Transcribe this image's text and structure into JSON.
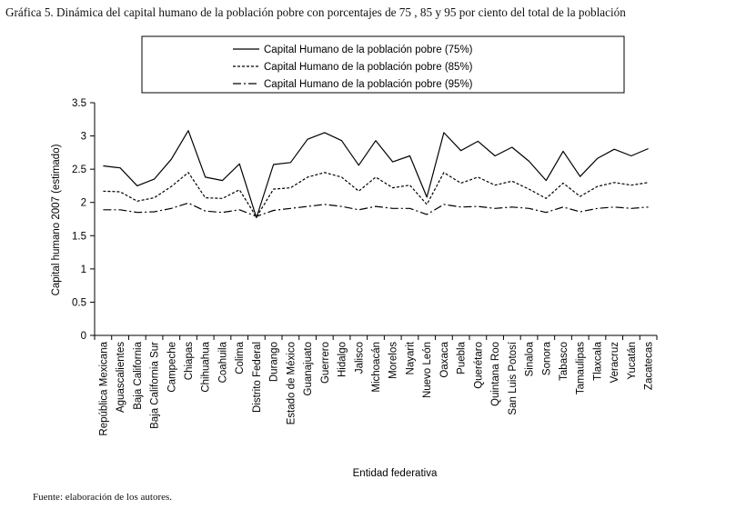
{
  "title": "Gráfica 5. Dinámica del capital humano de la población pobre con porcentajes de 75 , 85 y 95 por ciento del total de la población",
  "source": "Fuente: elaboración de los autores.",
  "chart_data": {
    "type": "line",
    "xlabel": "Entidad federativa",
    "ylabel": "Capital humano 2007 (estimado)",
    "ylim": [
      0,
      3.5
    ],
    "yticks": [
      "0",
      "0.5",
      "1",
      "1.5",
      "2",
      "2.5",
      "3",
      "3.5"
    ],
    "legend_position": "top",
    "grid": false,
    "categories": [
      "República Mexicana",
      "Aguascalientes",
      "Baja California",
      "Baja California Sur",
      "Campeche",
      "Chiapas",
      "Chihuahua",
      "Coahuila",
      "Colima",
      "Distrito Federal",
      "Durango",
      "Estado de México",
      "Guanajuato",
      "Guerrero",
      "Hidalgo",
      "Jalisco",
      "Michoacán",
      "Morelos",
      "Nayarit",
      "Nuevo León",
      "Oaxaca",
      "Puebla",
      "Querétaro",
      "Quintana Roo",
      "San Luis Potosí",
      "Sinaloa",
      "Sonora",
      "Tabasco",
      "Tamaulipas",
      "Tlaxcala",
      "Veracruz",
      "Yucatán",
      "Zacatecas"
    ],
    "series": [
      {
        "name": "Capital Humano de la población pobre (75%)",
        "style": "solid",
        "values": [
          2.55,
          2.52,
          2.25,
          2.35,
          2.65,
          3.08,
          2.38,
          2.33,
          2.58,
          1.77,
          2.57,
          2.6,
          2.95,
          3.05,
          2.93,
          2.56,
          2.93,
          2.61,
          2.7,
          2.08,
          3.05,
          2.78,
          2.92,
          2.7,
          2.83,
          2.62,
          2.33,
          2.77,
          2.39,
          2.66,
          2.8,
          2.7,
          2.81
        ]
      },
      {
        "name": "Capital Humano de la población pobre (85%)",
        "style": "dashed",
        "values": [
          2.17,
          2.16,
          2.02,
          2.07,
          2.24,
          2.45,
          2.07,
          2.06,
          2.19,
          1.78,
          2.2,
          2.22,
          2.38,
          2.45,
          2.38,
          2.17,
          2.38,
          2.22,
          2.26,
          1.97,
          2.45,
          2.29,
          2.38,
          2.26,
          2.32,
          2.2,
          2.06,
          2.29,
          2.09,
          2.24,
          2.3,
          2.26,
          2.3
        ]
      },
      {
        "name": "Capital Humano de la población pobre (95%)",
        "style": "dashdot",
        "values": [
          1.89,
          1.89,
          1.85,
          1.86,
          1.91,
          1.99,
          1.87,
          1.85,
          1.89,
          1.79,
          1.88,
          1.91,
          1.94,
          1.97,
          1.94,
          1.89,
          1.94,
          1.91,
          1.91,
          1.82,
          1.97,
          1.93,
          1.94,
          1.91,
          1.93,
          1.91,
          1.85,
          1.93,
          1.86,
          1.91,
          1.93,
          1.91,
          1.93
        ]
      }
    ]
  }
}
